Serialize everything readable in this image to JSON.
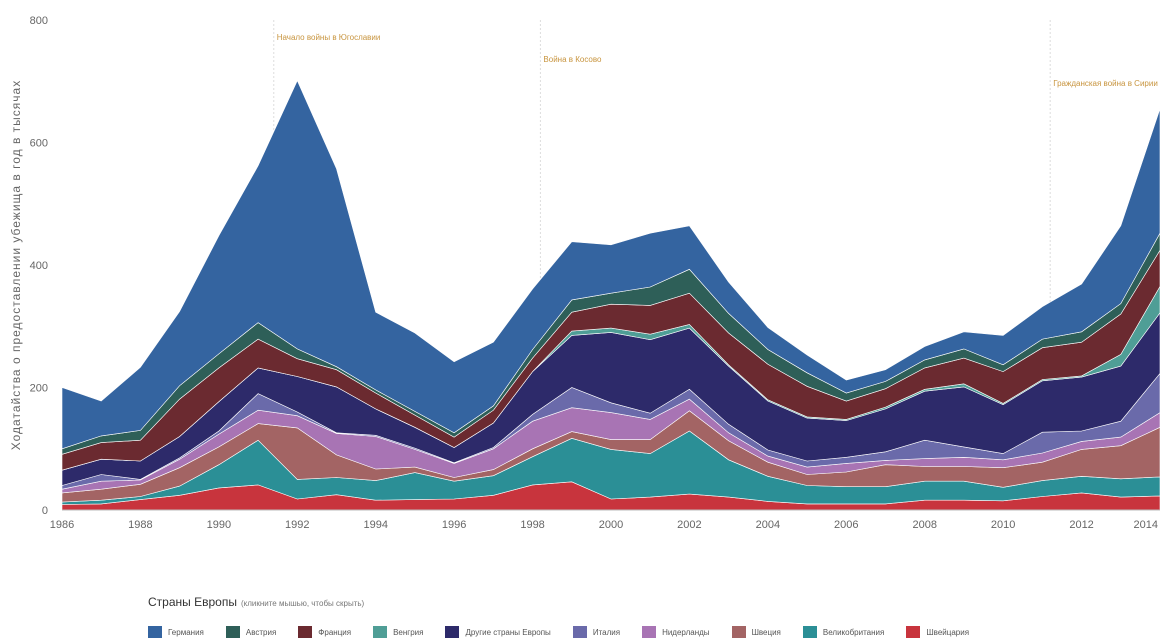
{
  "chart_data": {
    "type": "area",
    "stacked": true,
    "ylabel": "Ходатайства о предоставлении убежища в год в тысячах",
    "xlabel": "",
    "ylim": [
      0,
      800
    ],
    "yticks": [
      0,
      200,
      400,
      600,
      800
    ],
    "xticks": [
      1986,
      1988,
      1990,
      1992,
      1994,
      1996,
      1998,
      2000,
      2002,
      2004,
      2006,
      2008,
      2010,
      2012,
      2014
    ],
    "x": [
      1986,
      1987,
      1988,
      1989,
      1990,
      1991,
      1992,
      1993,
      1994,
      1995,
      1996,
      1997,
      1998,
      1999,
      2000,
      2001,
      2002,
      2003,
      2004,
      2005,
      2006,
      2007,
      2008,
      2009,
      2010,
      2011,
      2012,
      2013,
      2014
    ],
    "series": [
      {
        "name": "Швейцария",
        "color": "#c8343d",
        "values": [
          9,
          10,
          17,
          24,
          36,
          41,
          18,
          25,
          16,
          17,
          18,
          24,
          41,
          46,
          18,
          21,
          26,
          21,
          14,
          10,
          10,
          10,
          16,
          16,
          15,
          22,
          28,
          21,
          23
        ]
      },
      {
        "name": "Великобритания",
        "color": "#2b8f96",
        "values": [
          4,
          6,
          5,
          15,
          38,
          73,
          32,
          28,
          32,
          44,
          29,
          32,
          46,
          71,
          81,
          71,
          103,
          61,
          41,
          30,
          28,
          28,
          31,
          31,
          22,
          26,
          27,
          30,
          31
        ]
      },
      {
        "name": "Швеция",
        "color": "#a36464",
        "values": [
          15,
          18,
          20,
          30,
          29,
          27,
          84,
          37,
          19,
          9,
          6,
          10,
          13,
          11,
          16,
          23,
          33,
          31,
          23,
          18,
          24,
          36,
          24,
          24,
          32,
          30,
          44,
          54,
          81
        ]
      },
      {
        "name": "Нидерланды",
        "color": "#a874b4",
        "values": [
          6,
          13,
          7,
          14,
          21,
          22,
          20,
          35,
          53,
          29,
          23,
          34,
          45,
          39,
          44,
          33,
          19,
          13,
          10,
          12,
          14,
          7,
          13,
          15,
          13,
          15,
          13,
          14,
          24
        ]
      },
      {
        "name": "Италия",
        "color": "#6a6aaa",
        "values": [
          6,
          11,
          1,
          2,
          5,
          27,
          6,
          1,
          2,
          2,
          1,
          2,
          11,
          33,
          16,
          10,
          16,
          14,
          10,
          10,
          10,
          14,
          30,
          17,
          10,
          34,
          17,
          26,
          64
        ]
      },
      {
        "name": "Другие страны Европы",
        "color": "#2d2a6a",
        "values": [
          25,
          25,
          30,
          35,
          48,
          42,
          58,
          75,
          43,
          34,
          25,
          40,
          70,
          85,
          115,
          120,
          100,
          95,
          80,
          70,
          60,
          70,
          80,
          98,
          80,
          84,
          88,
          90,
          99
        ]
      },
      {
        "name": "Венгрия",
        "color": "#4f9e96",
        "values": [
          0,
          0,
          0,
          0,
          0,
          0,
          0,
          0,
          0,
          0,
          0,
          0,
          0,
          7,
          7,
          9,
          6,
          2,
          2,
          2,
          2,
          3,
          3,
          5,
          2,
          2,
          2,
          19,
          43
        ]
      },
      {
        "name": "Франция",
        "color": "#6b2a30",
        "values": [
          26,
          27,
          34,
          61,
          55,
          47,
          29,
          28,
          26,
          20,
          17,
          21,
          22,
          31,
          39,
          47,
          51,
          52,
          58,
          50,
          30,
          30,
          35,
          42,
          52,
          52,
          55,
          66,
          59
        ]
      },
      {
        "name": "Австрия",
        "color": "#2e5f58",
        "values": [
          9,
          11,
          16,
          22,
          23,
          27,
          16,
          5,
          5,
          6,
          7,
          7,
          14,
          20,
          18,
          30,
          39,
          32,
          24,
          22,
          13,
          12,
          13,
          15,
          11,
          14,
          17,
          17,
          28
        ]
      },
      {
        "name": "Германия",
        "color": "#3464a0",
        "values": [
          100,
          57,
          103,
          121,
          193,
          256,
          438,
          323,
          127,
          128,
          116,
          104,
          99,
          95,
          79,
          88,
          71,
          51,
          36,
          29,
          21,
          19,
          22,
          28,
          48,
          53,
          78,
          127,
          203
        ]
      }
    ],
    "legend_order": [
      "Германия",
      "Австрия",
      "Франция",
      "Венгрия",
      "Другие страны Европы",
      "Италия",
      "Нидерланды",
      "Швеция",
      "Великобритания",
      "Швейцария"
    ],
    "legend_position": "bottom",
    "annotations": [
      {
        "x": 1991.4,
        "text": "Начало войны в Югославии",
        "level": 0
      },
      {
        "x": 1998.2,
        "text": "Война в Косово",
        "level": 1
      },
      {
        "x": 2011.2,
        "text": "Гражданская война в Сирии",
        "level": 2
      }
    ]
  },
  "legend": {
    "title": "Страны Европы",
    "hint": "(кликните мышью, чтобы скрыть)"
  }
}
